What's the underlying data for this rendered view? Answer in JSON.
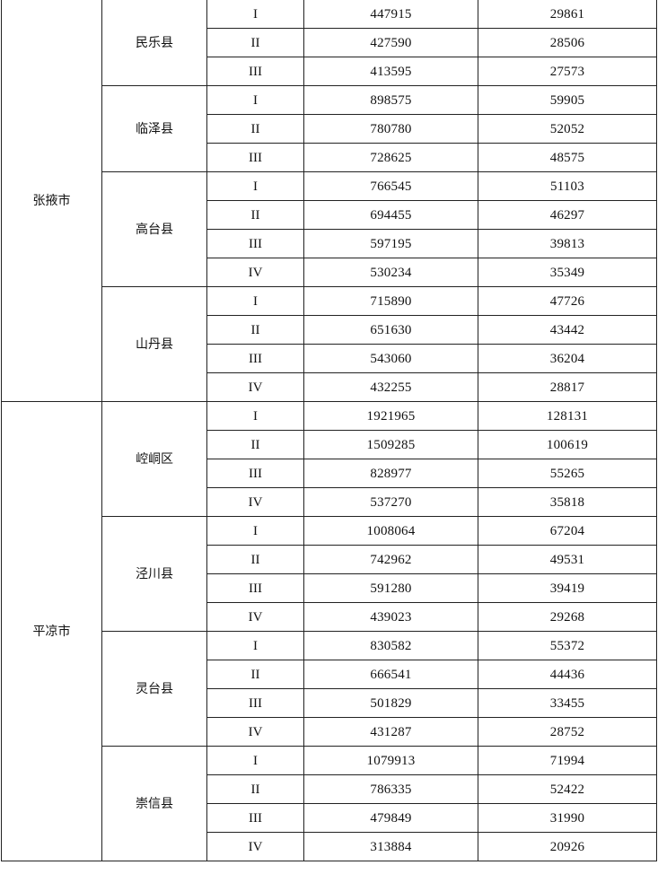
{
  "cities": [
    {
      "name": "张掖市",
      "counties": [
        {
          "name": "民乐县",
          "rows": [
            [
              "I",
              "447915",
              "29861"
            ],
            [
              "II",
              "427590",
              "28506"
            ],
            [
              "III",
              "413595",
              "27573"
            ]
          ]
        },
        {
          "name": "临泽县",
          "rows": [
            [
              "I",
              "898575",
              "59905"
            ],
            [
              "II",
              "780780",
              "52052"
            ],
            [
              "III",
              "728625",
              "48575"
            ]
          ]
        },
        {
          "name": "高台县",
          "rows": [
            [
              "I",
              "766545",
              "51103"
            ],
            [
              "II",
              "694455",
              "46297"
            ],
            [
              "III",
              "597195",
              "39813"
            ],
            [
              "IV",
              "530234",
              "35349"
            ]
          ]
        },
        {
          "name": "山丹县",
          "rows": [
            [
              "I",
              "715890",
              "47726"
            ],
            [
              "II",
              "651630",
              "43442"
            ],
            [
              "III",
              "543060",
              "36204"
            ],
            [
              "IV",
              "432255",
              "28817"
            ]
          ]
        }
      ]
    },
    {
      "name": "平凉市",
      "counties": [
        {
          "name": "崆峒区",
          "rows": [
            [
              "I",
              "1921965",
              "128131"
            ],
            [
              "II",
              "1509285",
              "100619"
            ],
            [
              "III",
              "828977",
              "55265"
            ],
            [
              "IV",
              "537270",
              "35818"
            ]
          ]
        },
        {
          "name": "泾川县",
          "rows": [
            [
              "I",
              "1008064",
              "67204"
            ],
            [
              "II",
              "742962",
              "49531"
            ],
            [
              "III",
              "591280",
              "39419"
            ],
            [
              "IV",
              "439023",
              "29268"
            ]
          ]
        },
        {
          "name": "灵台县",
          "rows": [
            [
              "I",
              "830582",
              "55372"
            ],
            [
              "II",
              "666541",
              "44436"
            ],
            [
              "III",
              "501829",
              "33455"
            ],
            [
              "IV",
              "431287",
              "28752"
            ]
          ]
        },
        {
          "name": "崇信县",
          "rows": [
            [
              "I",
              "1079913",
              "71994"
            ],
            [
              "II",
              "786335",
              "52422"
            ],
            [
              "III",
              "479849",
              "31990"
            ],
            [
              "IV",
              "313884",
              "20926"
            ]
          ]
        }
      ]
    }
  ]
}
